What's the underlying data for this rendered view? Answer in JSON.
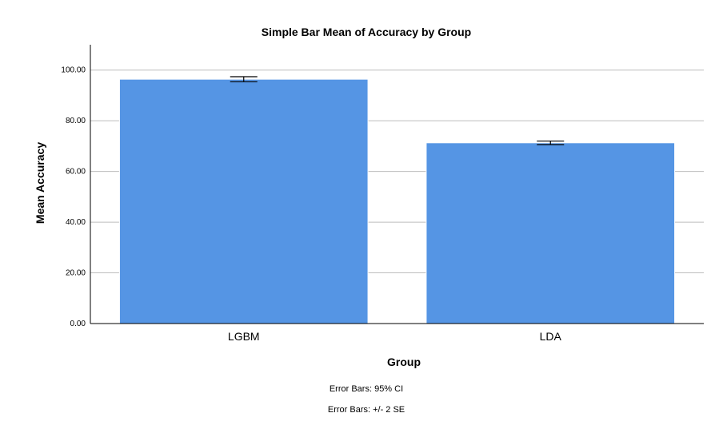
{
  "chart_data": {
    "type": "bar",
    "title": "Simple Bar Mean of Accuracy by Group",
    "xlabel": "Group",
    "ylabel": "Mean Accuracy",
    "categories": [
      "LGBM",
      "LDA"
    ],
    "values": [
      96.4,
      71.3
    ],
    "error_bars": [
      {
        "low": 95.4,
        "high": 97.4
      },
      {
        "low": 70.6,
        "high": 72.0
      }
    ],
    "ylim": [
      0,
      110
    ],
    "yticks": [
      0,
      20,
      40,
      60,
      80,
      100
    ],
    "ytick_labels": [
      "0.00",
      "20.00",
      "40.00",
      "60.00",
      "80.00",
      "100.00"
    ],
    "grid": true,
    "bar_color": "#5595e4",
    "footnotes": [
      "Error Bars: 95% CI",
      "Error Bars: +/- 2 SE"
    ]
  }
}
